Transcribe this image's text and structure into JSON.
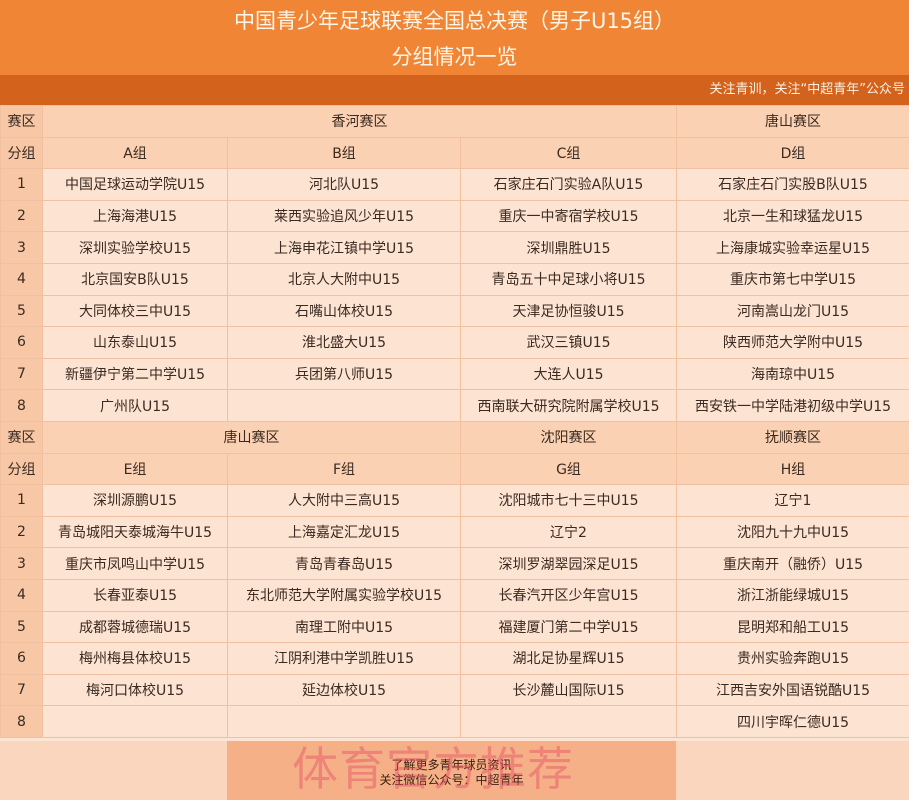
{
  "header": {
    "title": "中国青少年足球联赛全国总决赛（男子U15组）",
    "subtitle": "分组情况一览",
    "slogan": "关注青训，关注“中超青年”公众号"
  },
  "labels": {
    "region": "赛区",
    "group": "分组"
  },
  "sections": [
    {
      "regions": [
        {
          "name": "香河赛区",
          "span": 3
        },
        {
          "name": "唐山赛区",
          "span": 1
        }
      ],
      "groups": [
        "A组",
        "B组",
        "C组",
        "D组"
      ],
      "rows": [
        [
          "1",
          "中国足球运动学院U15",
          "河北队U15",
          "石家庄石门实验A队U15",
          "石家庄石门实股B队U15"
        ],
        [
          "2",
          "上海海港U15",
          "莱西实验追风少年U15",
          "重庆一中寄宿学校U15",
          "北京一生和球猛龙U15"
        ],
        [
          "3",
          "深圳实验学校U15",
          "上海申花江镇中学U15",
          "深圳鼎胜U15",
          "上海康城实验幸运星U15"
        ],
        [
          "4",
          "北京国安B队U15",
          "北京人大附中U15",
          "青岛五十中足球小将U15",
          "重庆市第七中学U15"
        ],
        [
          "5",
          "大同体校三中U15",
          "石嘴山体校U15",
          "天津足协恒骏U15",
          "河南嵩山龙门U15"
        ],
        [
          "6",
          "山东泰山U15",
          "淮北盛大U15",
          "武汉三镇U15",
          "陕西师范大学附中U15"
        ],
        [
          "7",
          "新疆伊宁第二中学U15",
          "兵团第八师U15",
          "大连人U15",
          "海南琼中U15"
        ],
        [
          "8",
          "广州队U15",
          "",
          "西南联大研究院附属学校U15",
          "西安铁一中学陆港初级中学U15"
        ]
      ]
    },
    {
      "regions": [
        {
          "name": "唐山赛区",
          "span": 2
        },
        {
          "name": "沈阳赛区",
          "span": 1
        },
        {
          "name": "抚顺赛区",
          "span": 1
        }
      ],
      "groups": [
        "E组",
        "F组",
        "G组",
        "H组"
      ],
      "rows": [
        [
          "1",
          "深圳源鹏U15",
          "人大附中三高U15",
          "沈阳城市七十三中U15",
          "辽宁1"
        ],
        [
          "2",
          "青岛城阳天泰城海牛U15",
          "上海嘉定汇龙U15",
          "辽宁2",
          "沈阳九十九中U15"
        ],
        [
          "3",
          "重庆市凤鸣山中学U15",
          "青岛青春岛U15",
          "深圳罗湖翠园深足U15",
          "重庆南开（融侨）U15"
        ],
        [
          "4",
          "长春亚泰U15",
          "东北师范大学附属实验学校U15",
          "长春汽开区少年宫U15",
          "浙江浙能绿城U15"
        ],
        [
          "5",
          "成都蓉城德瑞U15",
          "南理工附中U15",
          "福建厦门第二中学U15",
          "昆明郑和船工U15"
        ],
        [
          "6",
          "梅州梅县体校U15",
          "江阴利港中学凯胜U15",
          "湖北足协星辉U15",
          "贵州实验奔跑U15"
        ],
        [
          "7",
          "梅河口体校U15",
          "延边体校U15",
          "长沙麓山国际U15",
          "江西吉安外国语锐酷U15"
        ],
        [
          "8",
          "",
          "",
          "",
          "四川宇晖仁德U15"
        ]
      ]
    }
  ],
  "footer": {
    "line1": "了解更多青年球员资讯",
    "line2": "关注微信公众号：中超青年"
  },
  "watermark": "体育官方推荐",
  "colors": {
    "title_bg": "#ef8535",
    "slogan_bg": "#d2621c",
    "cell_bg": "#fde3d2",
    "index_bg": "#f8c8a6"
  }
}
